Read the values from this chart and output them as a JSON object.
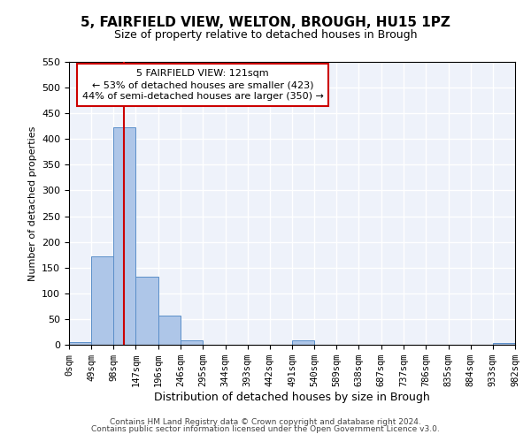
{
  "title": "5, FAIRFIELD VIEW, WELTON, BROUGH, HU15 1PZ",
  "subtitle": "Size of property relative to detached houses in Brough",
  "xlabel": "Distribution of detached houses by size in Brough",
  "ylabel": "Number of detached properties",
  "bin_edges": [
    0,
    49,
    98,
    147,
    196,
    246,
    295,
    344,
    393,
    442,
    491,
    540,
    589,
    638,
    687,
    737,
    786,
    835,
    884,
    933,
    982
  ],
  "bin_labels": [
    "0sqm",
    "49sqm",
    "98sqm",
    "147sqm",
    "196sqm",
    "246sqm",
    "295sqm",
    "344sqm",
    "393sqm",
    "442sqm",
    "491sqm",
    "540sqm",
    "589sqm",
    "638sqm",
    "687sqm",
    "737sqm",
    "786sqm",
    "835sqm",
    "884sqm",
    "933sqm",
    "982sqm"
  ],
  "bar_heights": [
    5,
    172,
    422,
    133,
    57,
    8,
    0,
    0,
    0,
    0,
    8,
    0,
    0,
    0,
    0,
    0,
    0,
    0,
    0,
    4
  ],
  "bar_color": "#aec6e8",
  "bar_edge_color": "#5b8fc9",
  "property_line_x": 121,
  "property_line_color": "#cc0000",
  "annotation_title": "5 FAIRFIELD VIEW: 121sqm",
  "annotation_line1": "← 53% of detached houses are smaller (423)",
  "annotation_line2": "44% of semi-detached houses are larger (350) →",
  "annotation_box_color": "#cc0000",
  "ylim": [
    0,
    550
  ],
  "yticks": [
    0,
    50,
    100,
    150,
    200,
    250,
    300,
    350,
    400,
    450,
    500,
    550
  ],
  "footer1": "Contains HM Land Registry data © Crown copyright and database right 2024.",
  "footer2": "Contains public sector information licensed under the Open Government Licence v3.0.",
  "background_color": "#eef2fa",
  "grid_color": "#ffffff",
  "title_fontsize": 11,
  "subtitle_fontsize": 9,
  "xlabel_fontsize": 9,
  "ylabel_fontsize": 8,
  "tick_fontsize": 7.5,
  "footer_fontsize": 6.5
}
